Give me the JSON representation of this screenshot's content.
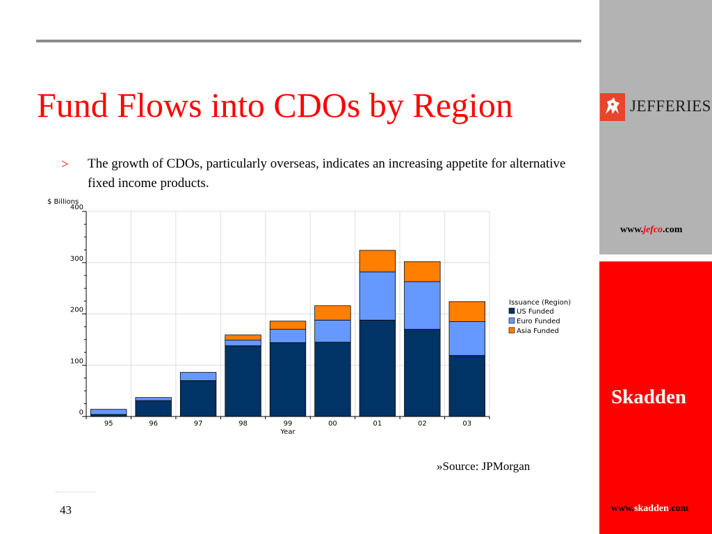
{
  "slide": {
    "title": "Fund Flows into CDOs by Region",
    "bullet_marker": ">",
    "bullet_text": "The growth of CDOs, particularly overseas, indicates an increasing appetite for alternative fixed income products.",
    "source": "»Source: JPMorgan",
    "page_number": "43"
  },
  "sidebar": {
    "jefferies_name": "JEFFERIES",
    "jefco_url_prefix": "www.",
    "jefco_url_domain": "jefco",
    "jefco_url_suffix": ".com",
    "skadden_name": "Skadden",
    "skadden_url_prefix": "www.",
    "skadden_url_domain": "skadden",
    "skadden_url_suffix": ".com",
    "colors": {
      "gray_panel": "#b3b3b3",
      "red_panel": "#ff0000",
      "accent": "#ff0000"
    }
  },
  "chart_data": {
    "type": "bar",
    "stacked": true,
    "title": "",
    "ylabel": "$ Billions",
    "xlabel": "Year",
    "ylim": [
      0,
      400
    ],
    "yticks": [
      0,
      100,
      200,
      300,
      400
    ],
    "grid": true,
    "legend_title": "Issuance (Region)",
    "legend_position": "right",
    "categories": [
      "95",
      "96",
      "97",
      "98",
      "99",
      "00",
      "01",
      "02",
      "03"
    ],
    "series": [
      {
        "name": "US Funded",
        "color": "#003366",
        "values": [
          4,
          31,
          70,
          138,
          144,
          145,
          188,
          170,
          119
        ]
      },
      {
        "name": "Euro Funded",
        "color": "#6699ff",
        "values": [
          10,
          6,
          16,
          11,
          26,
          43,
          94,
          93,
          66
        ]
      },
      {
        "name": "Asia Funded",
        "color": "#ff7f00",
        "values": [
          0,
          0,
          0,
          10,
          16,
          28,
          42,
          39,
          39
        ]
      }
    ]
  }
}
